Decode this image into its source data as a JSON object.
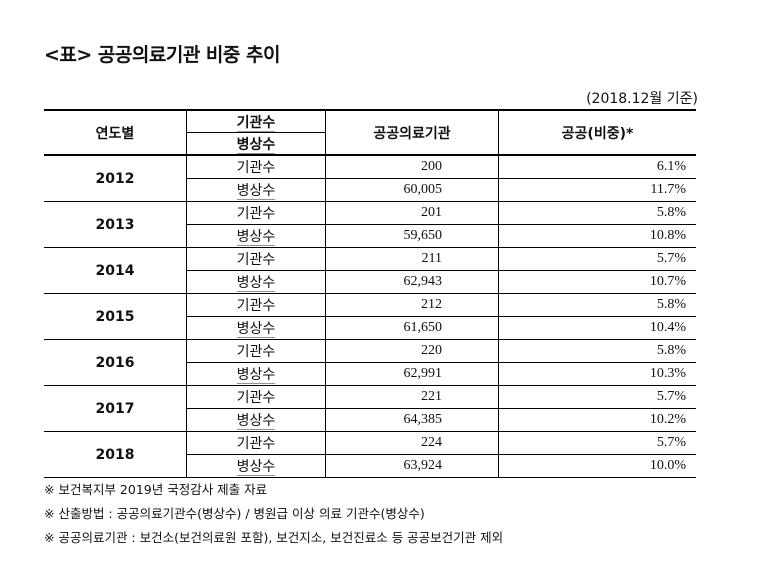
{
  "title": "<표> 공공의료기관 비중 추이",
  "basis": "(2018.12월 기준)",
  "table": {
    "headers": {
      "year": "연도별",
      "kind_top": "기관수",
      "kind_bottom": "병상수",
      "public": "공공의료기관",
      "ratio": "공공(비중)*"
    },
    "rows": [
      {
        "year": "2012",
        "inst_label": "기관수",
        "inst_value": "200",
        "inst_pct": "6.1%",
        "bed_label": "병상수",
        "bed_value": "60,005",
        "bed_pct": "11.7%"
      },
      {
        "year": "2013",
        "inst_label": "기관수",
        "inst_value": "201",
        "inst_pct": "5.8%",
        "bed_label": "병상수",
        "bed_value": "59,650",
        "bed_pct": "10.8%"
      },
      {
        "year": "2014",
        "inst_label": "기관수",
        "inst_value": "211",
        "inst_pct": "5.7%",
        "bed_label": "병상수",
        "bed_value": "62,943",
        "bed_pct": "10.7%"
      },
      {
        "year": "2015",
        "inst_label": "기관수",
        "inst_value": "212",
        "inst_pct": "5.8%",
        "bed_label": "병상수",
        "bed_value": "61,650",
        "bed_pct": "10.4%"
      },
      {
        "year": "2016",
        "inst_label": "기관수",
        "inst_value": "220",
        "inst_pct": "5.8%",
        "bed_label": "병상수",
        "bed_value": "62,991",
        "bed_pct": "10.3%"
      },
      {
        "year": "2017",
        "inst_label": "기관수",
        "inst_value": "221",
        "inst_pct": "5.7%",
        "bed_label": "병상수",
        "bed_value": "64,385",
        "bed_pct": "10.2%"
      },
      {
        "year": "2018",
        "inst_label": "기관수",
        "inst_value": "224",
        "inst_pct": "5.7%",
        "bed_label": "병상수",
        "bed_value": "63,924",
        "bed_pct": "10.0%"
      }
    ]
  },
  "notes": [
    "※ 보건복지부 2019년 국정감사 제출 자료",
    "※ 산출방법 : 공공의료기관수(병상수) / 병원급 이상 의료 기관수(병상수)",
    "※ 공공의료기관 : 보건소(보건의료원 포함), 보건지소, 보건진료소 등 공공보건기관 제외"
  ],
  "colors": {
    "underline": "#d48a1a"
  }
}
